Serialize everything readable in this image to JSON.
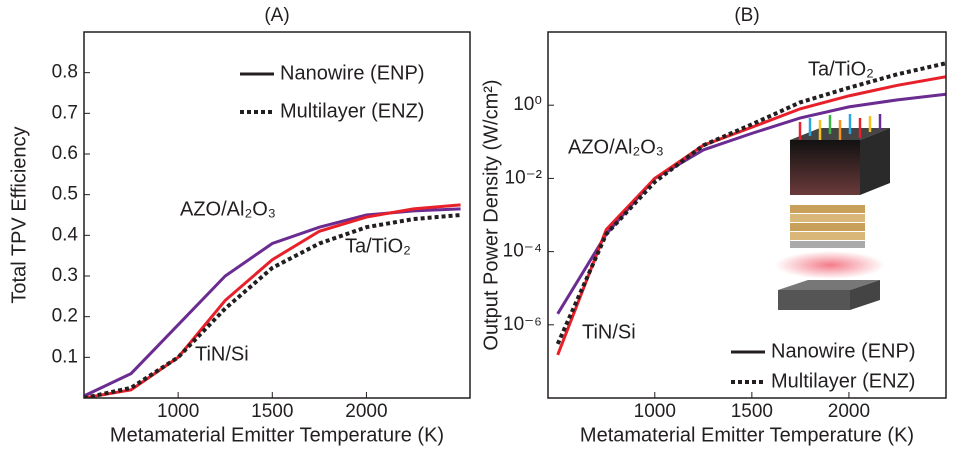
{
  "chart_data": [
    {
      "type": "line",
      "title": "(A)",
      "xlabel": "Metamaterial Emitter Temperature (K)",
      "ylabel": "Total TPV Efficiency",
      "x": [
        500,
        750,
        1000,
        1250,
        1500,
        1750,
        2000,
        2250,
        2500
      ],
      "series": [
        {
          "name": "AZO/Al₂O₃",
          "color": "#6a2c91",
          "dash": "solid",
          "values": [
            0.005,
            0.06,
            0.18,
            0.3,
            0.38,
            0.42,
            0.45,
            0.46,
            0.465
          ]
        },
        {
          "name": "TiN/Si",
          "color": "#e8202a",
          "dash": "solid",
          "values": [
            0,
            0.02,
            0.1,
            0.24,
            0.34,
            0.41,
            0.445,
            0.465,
            0.475
          ]
        },
        {
          "name": "Ta/TiO₂",
          "color": "#231f20",
          "dash": "dotted",
          "values": [
            0,
            0.025,
            0.1,
            0.22,
            0.32,
            0.38,
            0.42,
            0.44,
            0.45
          ]
        }
      ],
      "legend": [
        {
          "label": "Nanowire (ENP)",
          "dash": "solid"
        },
        {
          "label": "Multilayer (ENZ)",
          "dash": "dotted"
        }
      ],
      "legend_position": "upper right",
      "xlim": [
        500,
        2550
      ],
      "xticks": [
        1000,
        1500,
        2000
      ],
      "ylim": [
        0,
        0.9
      ],
      "yticks": [
        0.1,
        0.2,
        0.3,
        0.4,
        0.5,
        0.6,
        0.7,
        0.8
      ],
      "log_y": false
    },
    {
      "type": "line",
      "title": "(B)",
      "xlabel": "Metamaterial Emitter Temperature (K)",
      "ylabel": "Output Power Density (W/cm²)",
      "x": [
        500,
        750,
        1000,
        1250,
        1500,
        1750,
        2000,
        2250,
        2500
      ],
      "series": [
        {
          "name": "AZO/Al₂O₃",
          "color": "#6a2c91",
          "dash": "solid",
          "values": [
            2e-06,
            0.0003,
            0.01,
            0.06,
            0.17,
            0.45,
            0.9,
            1.4,
            2
          ]
        },
        {
          "name": "TiN/Si",
          "color": "#e8202a",
          "dash": "solid",
          "values": [
            1.5e-07,
            0.0004,
            0.01,
            0.08,
            0.25,
            0.8,
            1.8,
            3.5,
            6
          ]
        },
        {
          "name": "Ta/TiO₂",
          "color": "#231f20",
          "dash": "dotted",
          "values": [
            3e-07,
            0.0003,
            0.008,
            0.08,
            0.3,
            1.2,
            3,
            7,
            14
          ]
        }
      ],
      "legend": [
        {
          "label": "Nanowire (ENP)",
          "dash": "solid"
        },
        {
          "label": "Multilayer (ENZ)",
          "dash": "dotted"
        }
      ],
      "legend_position": "lower right",
      "xlim": [
        450,
        2500
      ],
      "xticks": [
        1000,
        1500,
        2000
      ],
      "ylim": [
        1e-08,
        100
      ],
      "yticks": [
        {
          "value": 1e-06,
          "label": "10⁻⁶"
        },
        {
          "value": 0.0001,
          "label": "10⁻⁴"
        },
        {
          "value": 0.01,
          "label": "10⁻²"
        },
        {
          "value": 1,
          "label": "10⁰"
        }
      ],
      "log_y": true
    }
  ]
}
